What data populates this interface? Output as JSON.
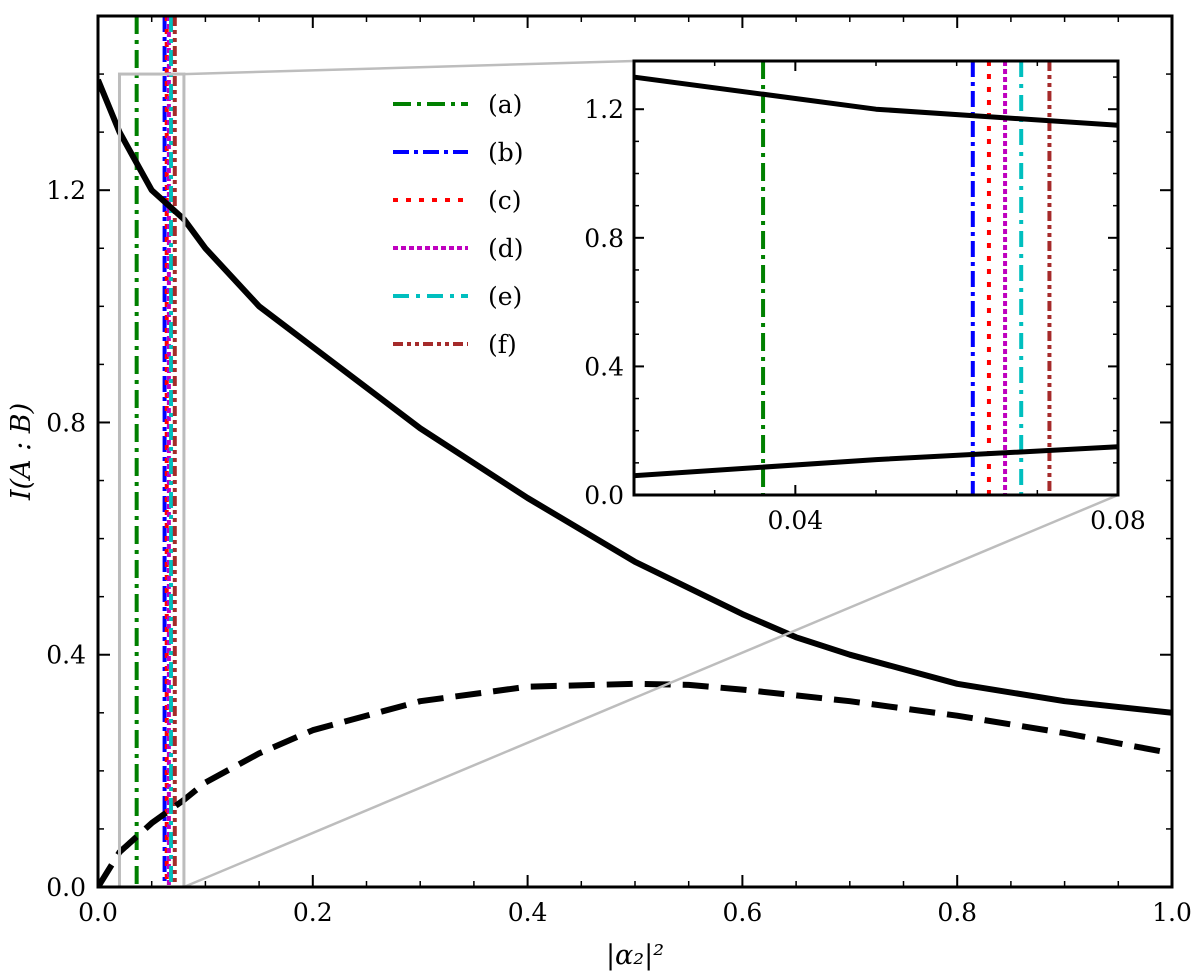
{
  "chart_data": {
    "type": "line",
    "xlabel": "|α₂|²",
    "ylabel": "I(A : B)",
    "xlim": [
      0.0,
      1.0
    ],
    "ylim": [
      0.0,
      1.5
    ],
    "xticks": [
      "0.0",
      "0.2",
      "0.4",
      "0.6",
      "0.8",
      "1.0"
    ],
    "yticks": [
      "0.0",
      "0.4",
      "0.8",
      "1.2"
    ],
    "series": [
      {
        "name": "solid",
        "style": "solid",
        "color": "#000000",
        "x": [
          0.0,
          0.02,
          0.05,
          0.08,
          0.1,
          0.15,
          0.2,
          0.3,
          0.4,
          0.5,
          0.6,
          0.65,
          0.7,
          0.8,
          0.9,
          1.0
        ],
        "y": [
          1.39,
          1.3,
          1.2,
          1.15,
          1.1,
          1.0,
          0.93,
          0.79,
          0.67,
          0.56,
          0.47,
          0.43,
          0.4,
          0.35,
          0.32,
          0.3
        ]
      },
      {
        "name": "dashed",
        "style": "dashed",
        "color": "#000000",
        "x": [
          0.0,
          0.02,
          0.05,
          0.08,
          0.1,
          0.15,
          0.2,
          0.3,
          0.4,
          0.5,
          0.55,
          0.6,
          0.7,
          0.8,
          0.9,
          1.0
        ],
        "y": [
          0.0,
          0.06,
          0.11,
          0.15,
          0.18,
          0.23,
          0.27,
          0.32,
          0.345,
          0.35,
          0.348,
          0.34,
          0.32,
          0.295,
          0.265,
          0.23
        ]
      }
    ],
    "vlines": [
      {
        "label": "(a)",
        "x": 0.036,
        "color": "#008000",
        "dash": "18,6,4,6"
      },
      {
        "label": "(b)",
        "x": 0.062,
        "color": "#0000ff",
        "dash": "16,5,4,5"
      },
      {
        "label": "(c)",
        "x": 0.064,
        "color": "#ff0000",
        "dash": "5,8"
      },
      {
        "label": "(d)",
        "x": 0.066,
        "color": "#bf00bf",
        "dash": "5,3"
      },
      {
        "label": "(e)",
        "x": 0.068,
        "color": "#00bfbf",
        "dash": "16,7,4,7"
      },
      {
        "label": "(f)",
        "x": 0.0715,
        "color": "#a52a2a",
        "dash": "10,4,4,4,4,4"
      }
    ],
    "zoom_box": {
      "x": [
        0.02,
        0.08
      ],
      "y": [
        0.0,
        1.4
      ]
    },
    "inset": {
      "xlim": [
        0.02,
        0.08
      ],
      "ylim": [
        0.0,
        1.35
      ],
      "xticks": [
        "0.04",
        "0.08"
      ],
      "yticks": [
        "0.0",
        "0.4",
        "0.8",
        "1.2"
      ]
    }
  }
}
